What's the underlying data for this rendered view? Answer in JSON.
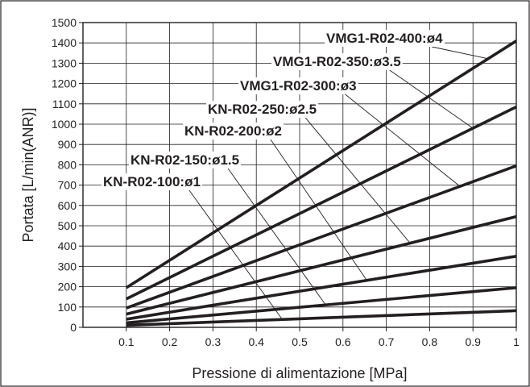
{
  "chart_data": {
    "type": "line",
    "xlabel": "Pressione di alimentazione [MPa]",
    "ylabel": "Portata [L/min(ANR)]",
    "xlim": [
      0.0,
      1.0
    ],
    "ylim": [
      0,
      1500
    ],
    "x_ticks": [
      "0.1",
      "0.2",
      "0.3",
      "0.4",
      "0.5",
      "0.6",
      "0.7",
      "0.8",
      "0.9",
      "1"
    ],
    "y_ticks": [
      "0",
      "100",
      "200",
      "300",
      "400",
      "500",
      "600",
      "700",
      "800",
      "900",
      "1000",
      "1100",
      "1200",
      "1300",
      "1400",
      "1500"
    ],
    "grid": true,
    "series": [
      {
        "name": "KN-R02-100:ø1",
        "x": [
          0.1,
          1.0
        ],
        "y": [
          10,
          82
        ]
      },
      {
        "name": "KN-R02-150:ø1.5",
        "x": [
          0.1,
          1.0
        ],
        "y": [
          22,
          195
        ]
      },
      {
        "name": "KN-R02-200:ø2",
        "x": [
          0.1,
          1.0
        ],
        "y": [
          40,
          350
        ]
      },
      {
        "name": "KN-R02-250:ø2.5",
        "x": [
          0.1,
          1.0
        ],
        "y": [
          65,
          545
        ]
      },
      {
        "name": "VMG1-R02-300:ø3",
        "x": [
          0.1,
          1.0
        ],
        "y": [
          95,
          795
        ]
      },
      {
        "name": "VMG1-R02-350:ø3.5",
        "x": [
          0.1,
          1.0
        ],
        "y": [
          140,
          1085
        ]
      },
      {
        "name": "VMG1-R02-400:ø4",
        "x": [
          0.1,
          1.0
        ],
        "y": [
          195,
          1410
        ]
      }
    ]
  }
}
